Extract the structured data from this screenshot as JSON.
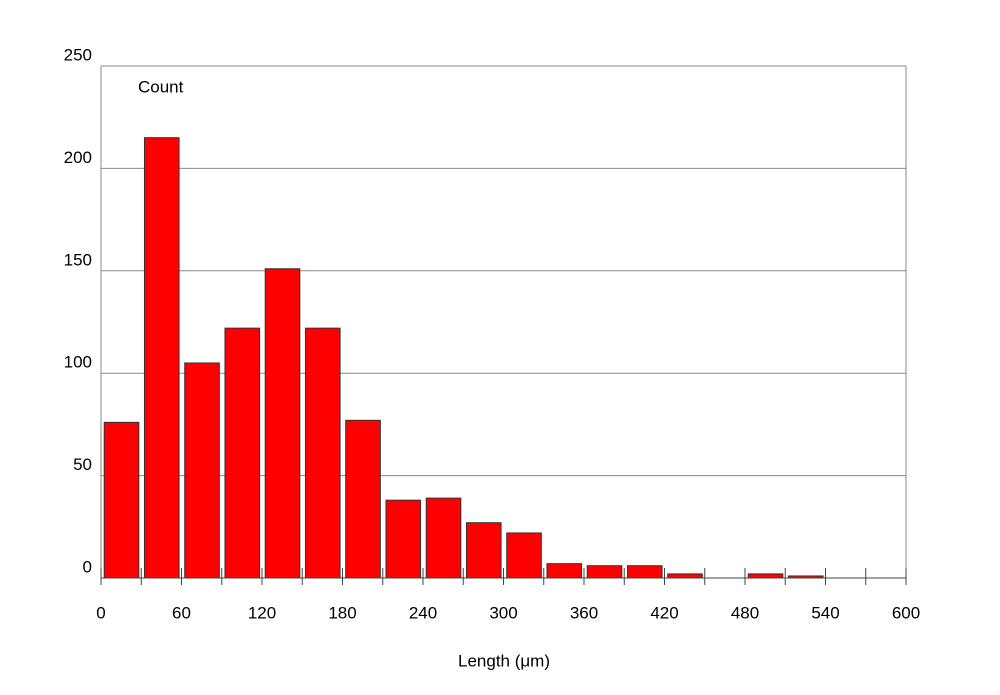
{
  "chart_data": {
    "type": "histogram",
    "x_label": "Length (μm)",
    "y_label": "Count",
    "bins": [
      0,
      30,
      60,
      90,
      120,
      150,
      180,
      210,
      240,
      270,
      300,
      330,
      360,
      390,
      420,
      450,
      480,
      510,
      540,
      570,
      600
    ],
    "values": [
      76,
      215,
      105,
      122,
      151,
      122,
      77,
      38,
      39,
      27,
      22,
      7,
      6,
      6,
      2,
      0,
      2,
      1,
      0,
      0
    ],
    "color": "#ff0000",
    "xlim": [
      0,
      600
    ],
    "xticks": [
      0,
      60,
      120,
      180,
      240,
      300,
      360,
      420,
      480,
      540,
      600
    ],
    "ylim": [
      0,
      250
    ],
    "yticks": [
      0,
      50,
      100,
      150,
      200,
      250
    ],
    "grid": true
  }
}
